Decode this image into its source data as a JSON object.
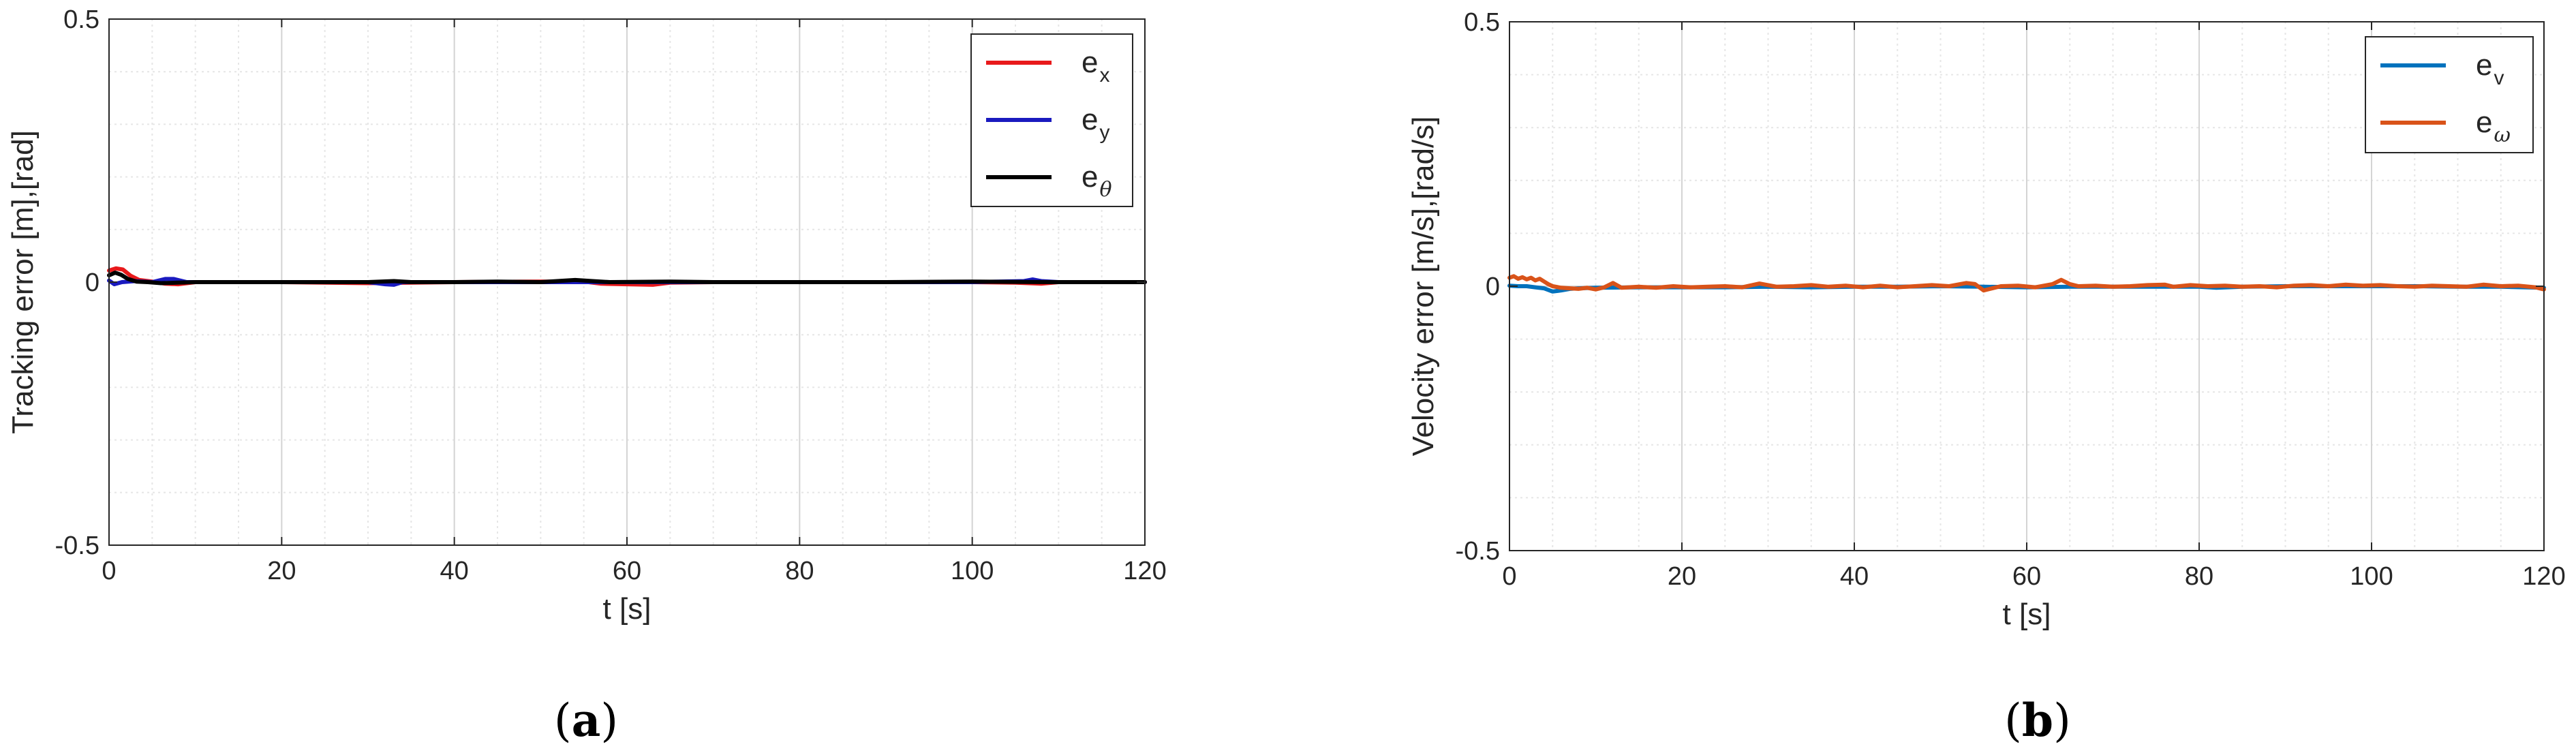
{
  "chart_data": [
    {
      "type": "line",
      "title": "",
      "xlabel": "t [s]",
      "ylabel": "Tracking error [m],[rad]",
      "xlim": [
        0,
        120
      ],
      "ylim": [
        -0.5,
        0.5
      ],
      "xticks": [
        "0",
        "20",
        "40",
        "60",
        "80",
        "100",
        "120"
      ],
      "yticks": [
        "-0.5",
        "0",
        "0.5"
      ],
      "grid": true,
      "minor_grid": true,
      "legend_placement": "top-right",
      "caption": {
        "open": "(",
        "letter": "a",
        "close": ")"
      },
      "series": [
        {
          "name": "e",
          "sub": "x",
          "sub_italic": false,
          "color": "#e8191b",
          "points": [
            [
              0,
              0.022
            ],
            [
              0.8,
              0.026
            ],
            [
              1.6,
              0.024
            ],
            [
              2.5,
              0.012
            ],
            [
              3.5,
              0.004
            ],
            [
              5,
              0.001
            ],
            [
              6.5,
              -0.003
            ],
            [
              8,
              -0.004
            ],
            [
              10,
              0.0
            ],
            [
              15,
              0.0
            ],
            [
              20,
              0.0
            ],
            [
              30,
              -0.002
            ],
            [
              40,
              0.0
            ],
            [
              50,
              0.001
            ],
            [
              55,
              0.001
            ],
            [
              57,
              -0.003
            ],
            [
              60,
              -0.004
            ],
            [
              63,
              -0.005
            ],
            [
              65,
              -0.001
            ],
            [
              70,
              0.0
            ],
            [
              80,
              0.0
            ],
            [
              90,
              0.0
            ],
            [
              100,
              0.0
            ],
            [
              105,
              -0.001
            ],
            [
              108,
              -0.003
            ],
            [
              110,
              0.0
            ],
            [
              120,
              0.0
            ]
          ]
        },
        {
          "name": "e",
          "sub": "y",
          "sub_italic": false,
          "color": "#1a1abf",
          "points": [
            [
              0,
              0.003
            ],
            [
              0.6,
              -0.004
            ],
            [
              1.5,
              0.0
            ],
            [
              3,
              0.002
            ],
            [
              5,
              0.0
            ],
            [
              6.5,
              0.006
            ],
            [
              7.5,
              0.006
            ],
            [
              9,
              0.0
            ],
            [
              15,
              0.0
            ],
            [
              20,
              0.0
            ],
            [
              30,
              0.0
            ],
            [
              32,
              -0.004
            ],
            [
              33,
              -0.005
            ],
            [
              34,
              0.0
            ],
            [
              40,
              0.0
            ],
            [
              50,
              0.0
            ],
            [
              55,
              0.0
            ],
            [
              60,
              0.0
            ],
            [
              70,
              0.0
            ],
            [
              80,
              0.0
            ],
            [
              90,
              0.0
            ],
            [
              100,
              0.0
            ],
            [
              106,
              0.002
            ],
            [
              107,
              0.005
            ],
            [
              108,
              0.002
            ],
            [
              110,
              0.0
            ],
            [
              120,
              0.0
            ]
          ]
        },
        {
          "name": "e",
          "sub": "θ",
          "sub_italic": true,
          "color": "#000000",
          "points": [
            [
              0,
              0.013
            ],
            [
              0.7,
              0.018
            ],
            [
              1.4,
              0.014
            ],
            [
              2.2,
              0.006
            ],
            [
              3.2,
              0.001
            ],
            [
              4.5,
              0.0
            ],
            [
              6,
              -0.002
            ],
            [
              8,
              -0.001
            ],
            [
              10,
              0.0
            ],
            [
              15,
              0.0
            ],
            [
              20,
              0.0
            ],
            [
              30,
              0.0
            ],
            [
              33,
              0.002
            ],
            [
              35,
              0.0
            ],
            [
              40,
              0.0
            ],
            [
              45,
              0.001
            ],
            [
              50,
              0.0
            ],
            [
              54,
              0.004
            ],
            [
              56,
              0.002
            ],
            [
              58,
              0.0
            ],
            [
              65,
              0.001
            ],
            [
              70,
              0.0
            ],
            [
              80,
              0.0
            ],
            [
              90,
              0.0
            ],
            [
              100,
              0.001
            ],
            [
              110,
              0.0
            ],
            [
              120,
              0.0
            ]
          ]
        }
      ]
    },
    {
      "type": "line",
      "title": "",
      "xlabel": "t [s]",
      "ylabel": "Velocity error [m/s],[rad/s]",
      "xlim": [
        0,
        120
      ],
      "ylim": [
        -0.5,
        0.5
      ],
      "xticks": [
        "0",
        "20",
        "40",
        "60",
        "80",
        "100",
        "120"
      ],
      "yticks": [
        "-0.5",
        "0",
        "0.5"
      ],
      "grid": true,
      "minor_grid": true,
      "legend_placement": "top-right",
      "caption": {
        "open": "(",
        "letter": "b",
        "close": ")"
      },
      "series": [
        {
          "name": "e",
          "sub": "v",
          "sub_italic": false,
          "color": "#0072bd",
          "points": [
            [
              0,
              0.001
            ],
            [
              1,
              0.0
            ],
            [
              2,
              0.0
            ],
            [
              3,
              -0.002
            ],
            [
              4,
              -0.004
            ],
            [
              5,
              -0.01
            ],
            [
              6,
              -0.008
            ],
            [
              7,
              -0.005
            ],
            [
              8,
              -0.004
            ],
            [
              10,
              -0.003
            ],
            [
              15,
              -0.002
            ],
            [
              20,
              -0.002
            ],
            [
              25,
              -0.002
            ],
            [
              30,
              -0.001
            ],
            [
              35,
              -0.002
            ],
            [
              40,
              -0.001
            ],
            [
              45,
              -0.001
            ],
            [
              50,
              0.0
            ],
            [
              55,
              -0.001
            ],
            [
              60,
              -0.002
            ],
            [
              65,
              -0.001
            ],
            [
              70,
              -0.001
            ],
            [
              75,
              -0.001
            ],
            [
              80,
              -0.001
            ],
            [
              82,
              -0.003
            ],
            [
              85,
              -0.001
            ],
            [
              90,
              0.0
            ],
            [
              95,
              0.0
            ],
            [
              100,
              0.0
            ],
            [
              105,
              0.0
            ],
            [
              110,
              -0.001
            ],
            [
              115,
              -0.001
            ],
            [
              120,
              -0.003
            ]
          ]
        },
        {
          "name": "e",
          "sub": "ω",
          "sub_italic": true,
          "color": "#d95319",
          "points": [
            [
              0,
              0.016
            ],
            [
              0.5,
              0.019
            ],
            [
              1,
              0.014
            ],
            [
              1.5,
              0.017
            ],
            [
              2,
              0.013
            ],
            [
              2.5,
              0.016
            ],
            [
              3,
              0.011
            ],
            [
              3.5,
              0.014
            ],
            [
              4,
              0.009
            ],
            [
              4.5,
              0.004
            ],
            [
              5,
              0.0
            ],
            [
              6,
              -0.003
            ],
            [
              7,
              -0.004
            ],
            [
              8,
              -0.005
            ],
            [
              9,
              -0.003
            ],
            [
              10,
              -0.006
            ],
            [
              11,
              -0.002
            ],
            [
              12,
              0.006
            ],
            [
              13,
              -0.003
            ],
            [
              15,
              -0.001
            ],
            [
              17,
              -0.003
            ],
            [
              19,
              0.0
            ],
            [
              21,
              -0.002
            ],
            [
              23,
              -0.001
            ],
            [
              25,
              0.0
            ],
            [
              27,
              -0.002
            ],
            [
              29,
              0.005
            ],
            [
              30,
              0.002
            ],
            [
              31,
              -0.001
            ],
            [
              33,
              0.0
            ],
            [
              35,
              0.002
            ],
            [
              37,
              -0.001
            ],
            [
              39,
              0.001
            ],
            [
              41,
              -0.002
            ],
            [
              43,
              0.001
            ],
            [
              45,
              -0.002
            ],
            [
              47,
              0.0
            ],
            [
              49,
              0.002
            ],
            [
              51,
              0.0
            ],
            [
              53,
              0.006
            ],
            [
              54,
              0.004
            ],
            [
              55,
              -0.008
            ],
            [
              56,
              -0.004
            ],
            [
              57,
              0.0
            ],
            [
              59,
              0.001
            ],
            [
              61,
              -0.002
            ],
            [
              63,
              0.004
            ],
            [
              64,
              0.012
            ],
            [
              65,
              0.004
            ],
            [
              66,
              0.0
            ],
            [
              68,
              0.001
            ],
            [
              70,
              -0.001
            ],
            [
              72,
              0.0
            ],
            [
              74,
              0.002
            ],
            [
              76,
              0.003
            ],
            [
              77,
              -0.001
            ],
            [
              79,
              0.002
            ],
            [
              81,
              0.0
            ],
            [
              83,
              0.001
            ],
            [
              85,
              -0.001
            ],
            [
              87,
              0.0
            ],
            [
              89,
              -0.002
            ],
            [
              91,
              0.001
            ],
            [
              93,
              0.002
            ],
            [
              95,
              0.0
            ],
            [
              97,
              0.003
            ],
            [
              99,
              0.001
            ],
            [
              101,
              0.002
            ],
            [
              103,
              0.0
            ],
            [
              105,
              -0.001
            ],
            [
              107,
              0.001
            ],
            [
              109,
              0.0
            ],
            [
              111,
              -0.001
            ],
            [
              113,
              0.003
            ],
            [
              115,
              0.0
            ],
            [
              117,
              0.001
            ],
            [
              119,
              -0.002
            ],
            [
              120,
              -0.006
            ]
          ]
        }
      ]
    }
  ]
}
